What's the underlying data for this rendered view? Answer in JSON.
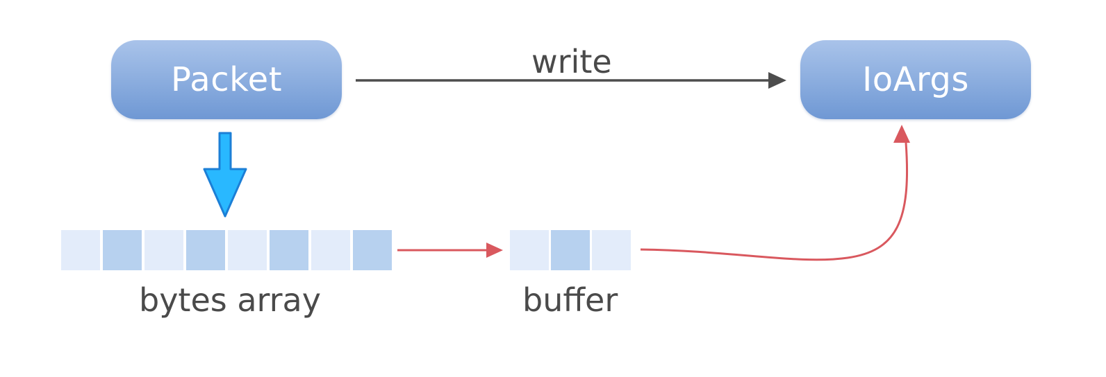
{
  "nodes": {
    "packet": "Packet",
    "ioargs": "IoArgs"
  },
  "labels": {
    "write": "write",
    "bytes_array": "bytes array",
    "buffer": "buffer"
  },
  "bytes_array_cells": [
    "light",
    "dark",
    "light",
    "dark",
    "light",
    "dark",
    "light",
    "dark"
  ],
  "buffer_cells": [
    "light",
    "dark",
    "light"
  ],
  "colors": {
    "node_gradient_top": "#a9c3ea",
    "node_gradient_bottom": "#6f98d4",
    "write_arrow": "#4d4d4d",
    "red_arrow": "#d9585e",
    "blue_arrow_fill": "#29b8ff",
    "blue_arrow_stroke": "#1c7fd6",
    "cell_light": "#e3ecfa",
    "cell_dark": "#b7d1ef"
  }
}
